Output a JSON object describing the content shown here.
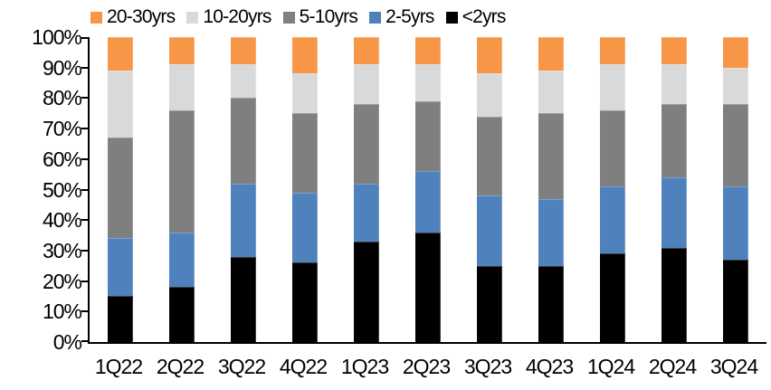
{
  "chart_data": {
    "type": "bar",
    "subtype": "stacked-100-percent",
    "title": "",
    "xlabel": "",
    "ylabel": "",
    "ylim": [
      0,
      100
    ],
    "y_tick_step": 10,
    "y_tick_labels": [
      "0%",
      "10%",
      "20%",
      "30%",
      "40%",
      "50%",
      "60%",
      "70%",
      "80%",
      "90%",
      "100%"
    ],
    "grid": false,
    "legend_position": "top",
    "legend_order": [
      "20-30yrs",
      "10-20yrs",
      "5-10yrs",
      "2-5yrs",
      "<2yrs"
    ],
    "categories": [
      "1Q22",
      "2Q22",
      "3Q22",
      "4Q22",
      "1Q23",
      "2Q23",
      "3Q23",
      "4Q23",
      "1Q24",
      "2Q24",
      "3Q24"
    ],
    "series": [
      {
        "name": "<2yrs",
        "color": "#000000",
        "values": [
          15,
          18,
          28,
          26,
          33,
          36,
          25,
          25,
          29,
          31,
          27
        ]
      },
      {
        "name": "2-5yrs",
        "color": "#4F81BD",
        "values": [
          19,
          18,
          24,
          23,
          19,
          20,
          23,
          22,
          22,
          23,
          24
        ]
      },
      {
        "name": "5-10yrs",
        "color": "#7F7F7F",
        "values": [
          33,
          40,
          28,
          26,
          26,
          23,
          26,
          28,
          25,
          24,
          27
        ]
      },
      {
        "name": "10-20yrs",
        "color": "#D9D9D9",
        "values": [
          22,
          15,
          11,
          13,
          13,
          12,
          14,
          14,
          15,
          13,
          12
        ]
      },
      {
        "name": "20-30yrs",
        "color": "#F79646",
        "values": [
          11,
          9,
          9,
          12,
          9,
          9,
          12,
          11,
          9,
          9,
          10
        ]
      }
    ],
    "axis_color": "#000000",
    "text_color": "#000000",
    "background_color": "#FFFFFF"
  }
}
